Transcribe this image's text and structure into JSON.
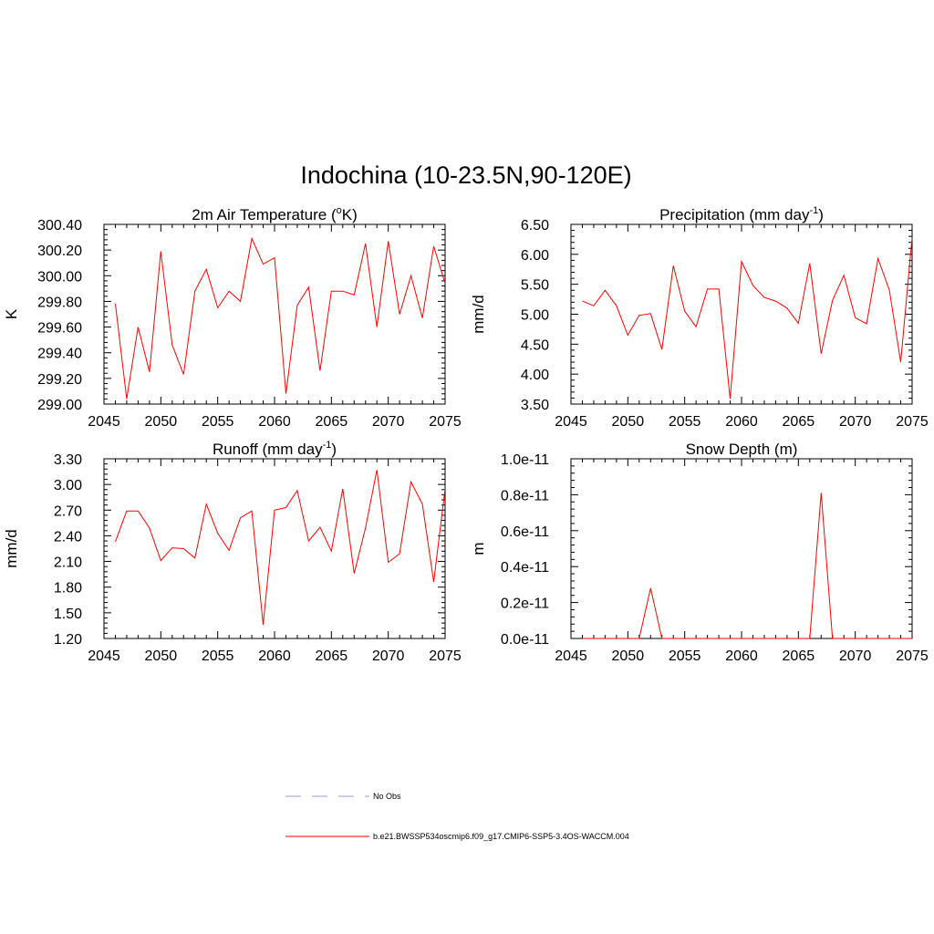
{
  "figure": {
    "title": "Indochina (10-23.5N,90-120E)"
  },
  "legend": [
    {
      "label": "No Obs",
      "color": "#9999dd",
      "style": "dashed"
    },
    {
      "label": "b.e21.BWSSP534oscmip6.f09_g17.CMIP6-SSP5-3.4OS-WACCM.004",
      "color": "#ff0000",
      "style": "solid"
    }
  ],
  "chart_data": [
    {
      "type": "line",
      "title_main": "2m Air Temperature (",
      "title_sup": "o",
      "title_tail": "K)",
      "ylabel": "K",
      "xlim": [
        2045,
        2075
      ],
      "ylim": [
        299.0,
        300.4
      ],
      "xticks": [
        2045,
        2050,
        2055,
        2060,
        2065,
        2070,
        2075
      ],
      "xtick_labels": [
        "2045",
        "2050",
        "2055",
        "2060",
        "2065",
        "2070",
        "2075"
      ],
      "yticks": [
        299.0,
        299.2,
        299.4,
        299.6,
        299.8,
        300.0,
        300.2,
        300.4
      ],
      "ytick_labels": [
        "299.00",
        "299.20",
        "299.40",
        "299.60",
        "299.80",
        "300.00",
        "300.20",
        "300.40"
      ],
      "color": "#ff0000",
      "x": [
        2046,
        2047,
        2048,
        2049,
        2050,
        2051,
        2052,
        2053,
        2054,
        2055,
        2056,
        2057,
        2058,
        2059,
        2060,
        2061,
        2062,
        2063,
        2064,
        2065,
        2066,
        2067,
        2068,
        2069,
        2070,
        2071,
        2072,
        2073,
        2074,
        2075
      ],
      "values": [
        299.78,
        299.04,
        299.6,
        299.25,
        300.19,
        299.46,
        299.23,
        299.88,
        300.05,
        299.75,
        299.88,
        299.8,
        300.29,
        300.09,
        300.14,
        299.08,
        299.77,
        299.91,
        299.26,
        299.88,
        299.88,
        299.85,
        300.25,
        299.6,
        300.27,
        299.7,
        300.0,
        299.67,
        300.23,
        299.94
      ]
    },
    {
      "type": "line",
      "title_main": "Precipitation (mm day",
      "title_sup": "-1",
      "title_tail": ")",
      "ylabel": "mm/d",
      "xlim": [
        2045,
        2075
      ],
      "ylim": [
        3.5,
        6.5
      ],
      "xticks": [
        2045,
        2050,
        2055,
        2060,
        2065,
        2070,
        2075
      ],
      "xtick_labels": [
        "2045",
        "2050",
        "2055",
        "2060",
        "2065",
        "2070",
        "2075"
      ],
      "yticks": [
        3.5,
        4.0,
        4.5,
        5.0,
        5.5,
        6.0,
        6.5
      ],
      "ytick_labels": [
        "3.50",
        "4.00",
        "4.50",
        "5.00",
        "5.50",
        "6.00",
        "6.50"
      ],
      "color": "#ff0000",
      "x": [
        2046,
        2047,
        2048,
        2049,
        2050,
        2051,
        2052,
        2053,
        2054,
        2055,
        2056,
        2057,
        2058,
        2059,
        2060,
        2061,
        2062,
        2063,
        2064,
        2065,
        2066,
        2067,
        2068,
        2069,
        2070,
        2071,
        2072,
        2073,
        2074,
        2075
      ],
      "values": [
        5.22,
        5.14,
        5.4,
        5.14,
        4.65,
        4.98,
        5.01,
        4.41,
        5.81,
        5.05,
        4.79,
        5.42,
        5.42,
        3.59,
        5.88,
        5.48,
        5.28,
        5.22,
        5.1,
        4.85,
        5.85,
        4.34,
        5.23,
        5.65,
        4.94,
        4.84,
        5.93,
        5.4,
        4.2,
        6.28
      ]
    },
    {
      "type": "line",
      "title_main": "Runoff (mm day",
      "title_sup": "-1",
      "title_tail": ")",
      "ylabel": "mm/d",
      "xlim": [
        2045,
        2075
      ],
      "ylim": [
        1.2,
        3.3
      ],
      "xticks": [
        2045,
        2050,
        2055,
        2060,
        2065,
        2070,
        2075
      ],
      "xtick_labels": [
        "2045",
        "2050",
        "2055",
        "2060",
        "2065",
        "2070",
        "2075"
      ],
      "yticks": [
        1.2,
        1.5,
        1.8,
        2.1,
        2.4,
        2.7,
        3.0,
        3.3
      ],
      "ytick_labels": [
        "1.20",
        "1.50",
        "1.80",
        "2.10",
        "2.40",
        "2.70",
        "3.00",
        "3.30"
      ],
      "color": "#ff0000",
      "x": [
        2046,
        2047,
        2048,
        2049,
        2050,
        2051,
        2052,
        2053,
        2054,
        2055,
        2056,
        2057,
        2058,
        2059,
        2060,
        2061,
        2062,
        2063,
        2064,
        2065,
        2066,
        2067,
        2068,
        2069,
        2070,
        2071,
        2072,
        2073,
        2074,
        2075
      ],
      "values": [
        2.33,
        2.69,
        2.69,
        2.49,
        2.11,
        2.26,
        2.25,
        2.14,
        2.77,
        2.43,
        2.23,
        2.61,
        2.69,
        1.36,
        2.7,
        2.73,
        2.93,
        2.34,
        2.5,
        2.22,
        2.95,
        1.96,
        2.49,
        3.17,
        2.09,
        2.19,
        3.03,
        2.77,
        1.86,
        2.95
      ]
    },
    {
      "type": "line",
      "title_main": "Snow Depth (m)",
      "title_sup": "",
      "title_tail": "",
      "ylabel": "m",
      "xlim": [
        2045,
        2075
      ],
      "ylim": [
        0.0,
        1.0
      ],
      "value_units": "1e-11 m",
      "xticks": [
        2045,
        2050,
        2055,
        2060,
        2065,
        2070,
        2075
      ],
      "xtick_labels": [
        "2045",
        "2050",
        "2055",
        "2060",
        "2065",
        "2070",
        "2075"
      ],
      "yticks": [
        0.0,
        0.2,
        0.4,
        0.6,
        0.8,
        1.0
      ],
      "ytick_labels": [
        "0.0e-11",
        "0.2e-11",
        "0.4e-11",
        "0.6e-11",
        "0.8e-11",
        "1.0e-11"
      ],
      "color": "#ff0000",
      "x": [
        2046,
        2047,
        2048,
        2049,
        2050,
        2051,
        2052,
        2053,
        2054,
        2055,
        2056,
        2057,
        2058,
        2059,
        2060,
        2061,
        2062,
        2063,
        2064,
        2065,
        2066,
        2067,
        2068,
        2069,
        2070,
        2071,
        2072,
        2073,
        2074,
        2075
      ],
      "values": [
        0,
        0,
        0,
        0,
        0,
        0,
        0.28,
        0,
        0,
        0,
        0,
        0,
        0,
        0,
        0,
        0,
        0,
        0,
        0,
        0,
        0,
        0.81,
        0,
        0,
        0,
        0,
        0,
        0,
        0,
        0
      ]
    }
  ]
}
